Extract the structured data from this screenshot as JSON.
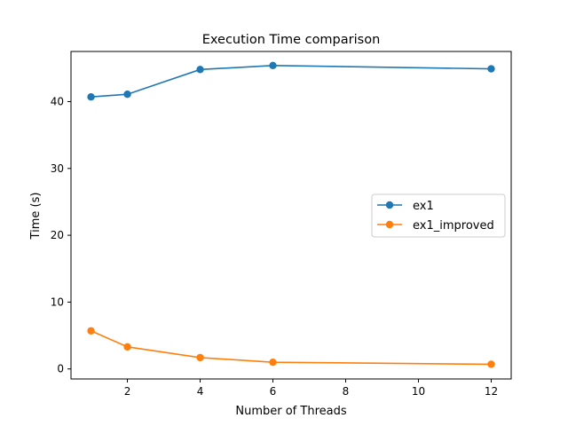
{
  "chart_data": {
    "type": "line",
    "title": "Execution Time comparison",
    "xlabel": "Number of Threads",
    "ylabel": "Time (s)",
    "xlim": [
      0.45,
      12.55
    ],
    "ylim": [
      -1.5,
      47.5
    ],
    "xticks": [
      2,
      4,
      6,
      8,
      10,
      12
    ],
    "yticks": [
      0,
      10,
      20,
      30,
      40
    ],
    "legend_position": "center-right",
    "grid": false,
    "series": [
      {
        "name": "ex1",
        "color": "#1f77b4",
        "x": [
          1,
          2,
          4,
          6,
          12
        ],
        "y": [
          40.7,
          41.1,
          44.8,
          45.4,
          44.9
        ]
      },
      {
        "name": "ex1_improved",
        "color": "#ff7f0e",
        "x": [
          1,
          2,
          4,
          6,
          12
        ],
        "y": [
          5.7,
          3.3,
          1.7,
          1.0,
          0.7
        ]
      }
    ]
  }
}
